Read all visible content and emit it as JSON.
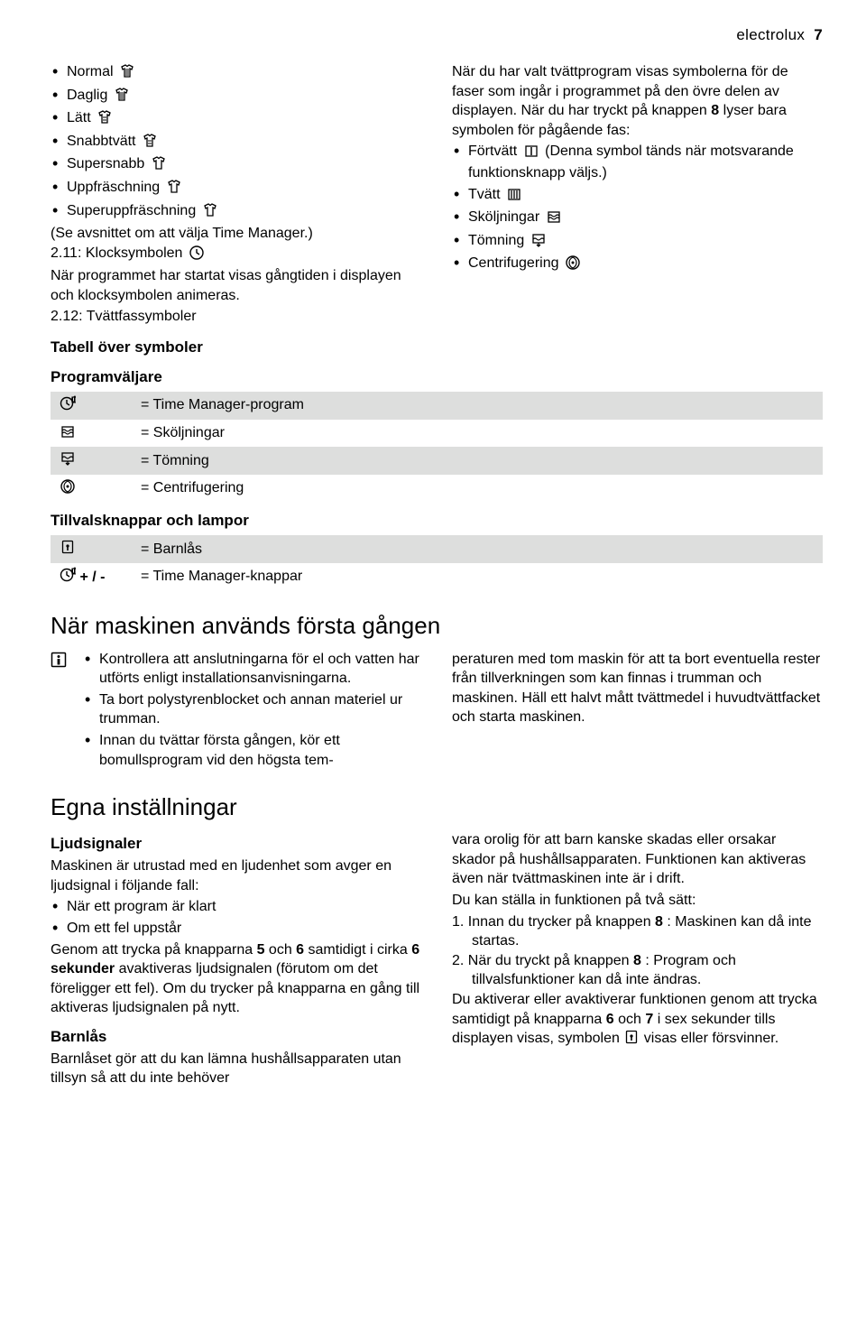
{
  "colors": {
    "text": "#000000",
    "bg": "#ffffff",
    "stripe": "#dddedd"
  },
  "fonts": {
    "body_family": "Arial, Helvetica, sans-serif",
    "body_size_pt": 12,
    "heading_size_pt": 19.5,
    "subheading_size_pt": 12.5
  },
  "header": {
    "brand": "electrolux",
    "page": "7"
  },
  "col_left": {
    "items": [
      {
        "label": "Normal",
        "icon": "shirt-dense-icon"
      },
      {
        "label": "Daglig",
        "icon": "shirt-dense-icon"
      },
      {
        "label": "Lätt",
        "icon": "shirt-light-icon"
      },
      {
        "label": "Snabbtvätt",
        "icon": "shirt-light-icon"
      },
      {
        "label": "Supersnabb",
        "icon": "shirt-outline-icon"
      },
      {
        "label": "Uppfräschning",
        "icon": "shirt-outline-icon"
      },
      {
        "label": "Superuppfräschning",
        "icon": "shirt-outline-icon"
      }
    ],
    "paren": "(Se avsnittet om att välja Time Manager.)",
    "s211_label": "2.11: Klocksymbolen ",
    "s211_icon": "clock-icon",
    "s211_text": "När programmet har startat visas gångtiden i displayen och klocksymbolen animeras.",
    "s212_label": "2.12: Tvättfassymboler"
  },
  "col_right": {
    "intro1": "När du har valt tvättprogram visas symbolerna för de faser som ingår i programmet på den övre delen av displayen. När du har tryckt på knappen ",
    "intro_btn": "8",
    "intro2": " lyser bara symbolen för pågående fas:",
    "items": [
      {
        "label": "Förtvätt ",
        "icon": "prewash-icon",
        "tail": " (Denna symbol tänds när motsvarande funktionsknapp väljs.)"
      },
      {
        "label": "Tvätt ",
        "icon": "wash-icon",
        "tail": ""
      },
      {
        "label": "Sköljningar ",
        "icon": "rinse-icon",
        "tail": ""
      },
      {
        "label": "Tömning ",
        "icon": "drain-icon",
        "tail": ""
      },
      {
        "label": "Centrifugering ",
        "icon": "spin-icon",
        "tail": ""
      }
    ]
  },
  "table_section": {
    "title": "Tabell över symboler",
    "group1_title": "Programväljare",
    "rows1": [
      {
        "icon": "time-manager-icon",
        "label": "= Time Manager-program"
      },
      {
        "icon": "rinse-icon",
        "label": "= Sköljningar"
      },
      {
        "icon": "drain-icon",
        "label": "= Tömning"
      },
      {
        "icon": "spin-icon",
        "label": "= Centrifugering"
      }
    ],
    "group2_title": "Tillvalsknappar och lampor",
    "rows2": [
      {
        "icon": "childlock-icon",
        "suffix": "",
        "label": "= Barnlås"
      },
      {
        "icon": "time-manager-icon",
        "suffix": " + / -",
        "label": "= Time Manager-knappar"
      }
    ]
  },
  "first_use": {
    "heading": "När maskinen används första gången",
    "left_items": [
      "Kontrollera att anslutningarna för el och vatten har utförts enligt installationsanvisningarna.",
      "Ta bort polystyrenblocket och annan materiel ur trumman.",
      "Innan du tvättar första gången, kör ett bomullsprogram vid den högsta tem-"
    ],
    "right_text": "peraturen med tom maskin för att ta bort eventuella rester från tillverkningen som kan finnas i trumman och maskinen. Häll ett halvt mått tvättmedel i huvudtvättfacket och starta maskinen."
  },
  "settings": {
    "heading": "Egna inställningar",
    "left": {
      "h1": "Ljudsignaler",
      "p1": "Maskinen är utrustad med en ljudenhet som avger en ljudsignal i följande fall:",
      "li1": "När ett program är klart",
      "li2": "Om ett fel uppstår",
      "p2a": "Genom att trycka på knapparna ",
      "b5": "5",
      "p2b": " och ",
      "b6": "6",
      "p2c": " samtidigt i cirka ",
      "b6s": "6 sekunder",
      "p2d": " avaktiveras ljudsignalen (förutom om det föreligger ett fel). Om du trycker på knapparna en gång till aktiveras ljudsignalen på nytt.",
      "h2": "Barnlås",
      "p3": "Barnlåset gör att du kan lämna hushållsapparaten utan tillsyn så att du inte behöver"
    },
    "right": {
      "p1": "vara orolig för att barn kanske skadas eller orsakar skador på hushållsapparaten. Funktionen kan aktiveras även när tvättmaskinen inte är i drift.",
      "p2": "Du kan ställa in funktionen på två sätt:",
      "li1a": "1.  Innan du trycker på knappen ",
      "li1btn": "8",
      "li1b": " : Maskinen kan då inte startas.",
      "li2a": "2.  När du tryckt på knappen ",
      "li2btn": "8",
      "li2b": " : Program och tillvalsfunktioner kan då inte ändras.",
      "p3a": "Du aktiverar eller avaktiverar funktionen genom att trycka samtidigt på knapparna ",
      "b6": "6",
      "p3b": " och ",
      "b7": "7",
      "p3c": " i sex sekunder tills displayen visas, symbolen ",
      "p3d": " visas eller försvinner."
    }
  }
}
